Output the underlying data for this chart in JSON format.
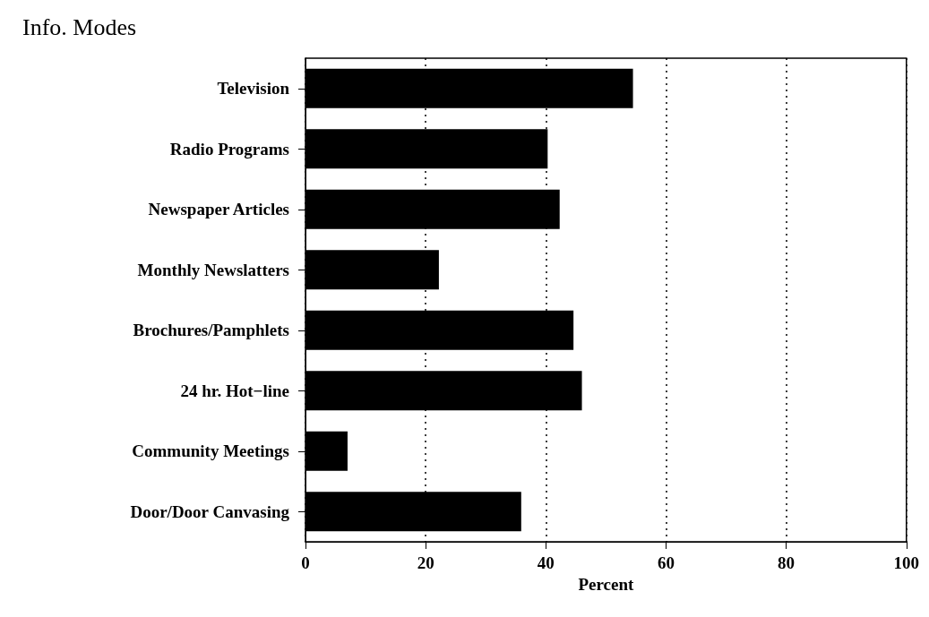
{
  "chart_data": {
    "type": "bar",
    "orientation": "horizontal",
    "title": "Info. Modes",
    "xlabel": "Percent",
    "categories": [
      "Television",
      "Radio Programs",
      "Newspaper Articles",
      "Monthly Newslatters",
      "Brochures/Pamphlets",
      "24 hr. Hot−line",
      "Community Meetings",
      "Door/Door Canvasing"
    ],
    "values": [
      54.5,
      40.3,
      42.3,
      22.2,
      44.6,
      46.0,
      7.0,
      35.9
    ],
    "color": "#000000",
    "xlim": [
      0,
      100
    ],
    "xticks": [
      0,
      20,
      40,
      60,
      80,
      100
    ],
    "grid": "x"
  }
}
